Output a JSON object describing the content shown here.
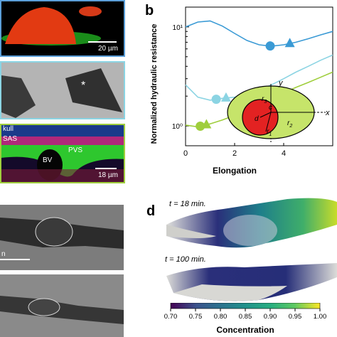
{
  "panel_a": {
    "top": {
      "scale_bar": "20 µm"
    },
    "middle": {
      "marker": "*"
    },
    "bottom": {
      "skull": "kull",
      "sas": "SAS",
      "bv": "BV",
      "pvs": "PVS",
      "scale_bar": "18 µm"
    }
  },
  "panel_b": {
    "label": "b",
    "xlabel": "Elongation",
    "ylabel": "Normalized hydraulic resistance",
    "x_ticks": [
      "0",
      "2",
      "4"
    ],
    "y_ticks": [
      "10⁰",
      "10¹"
    ],
    "inset": {
      "r1": "r",
      "r1_sub": "1",
      "r2": "r",
      "r2_sub": "2",
      "r3": "r",
      "r3_sub": "3",
      "c": "c",
      "d": "d",
      "x": "x",
      "y": "y"
    }
  },
  "panel_c": {
    "scale_bar": "n"
  },
  "panel_d": {
    "label": "d",
    "time_top": "t = 18 min.",
    "time_bottom": "t = 100 min.",
    "colorbar_title": "Concentration",
    "colorbar_ticks": [
      "0.70",
      "0.75",
      "0.80",
      "0.85",
      "0.90",
      "0.95",
      "1.00"
    ]
  },
  "chart_data": {
    "type": "line",
    "xlabel": "Elongation",
    "ylabel": "Normalized hydraulic resistance",
    "xlim": [
      0,
      6
    ],
    "ylog": true,
    "series": [
      {
        "color": "#3a9ad5",
        "x": [
          0,
          0.5,
          1,
          1.5,
          2,
          2.5,
          3,
          3.5,
          4,
          4.5,
          5,
          5.5,
          6
        ],
        "y": [
          10,
          11.2,
          11.5,
          10.2,
          8.6,
          7.3,
          6.6,
          6.4,
          6.6,
          7.0,
          7.6,
          8.3,
          9.0
        ]
      },
      {
        "color": "#8bd4e3",
        "x": [
          0,
          0.5,
          1,
          1.5,
          2,
          2.5,
          3,
          3.5,
          4,
          4.5,
          5,
          5.5,
          6
        ],
        "y": [
          2.6,
          1.95,
          1.82,
          1.9,
          1.95,
          2.1,
          2.3,
          2.6,
          3.0,
          3.5,
          4.0,
          4.6,
          5.2
        ]
      },
      {
        "color": "#9fce3c",
        "x": [
          0,
          0.5,
          1,
          1.5,
          2,
          2.5,
          3,
          3.5,
          4,
          4.5,
          5,
          5.5,
          6
        ],
        "y": [
          1.02,
          0.98,
          1.05,
          1.15,
          1.28,
          1.45,
          1.65,
          1.9,
          2.15,
          2.45,
          2.75,
          3.1,
          3.5
        ]
      }
    ],
    "markers": [
      {
        "series": 0,
        "circle_x": 3.45,
        "triangle_x": 4.25
      },
      {
        "series": 1,
        "circle_x": 1.25,
        "triangle_x": 1.65
      },
      {
        "series": 2,
        "circle_x": 0.6,
        "triangle_x": 0.85
      }
    ]
  }
}
